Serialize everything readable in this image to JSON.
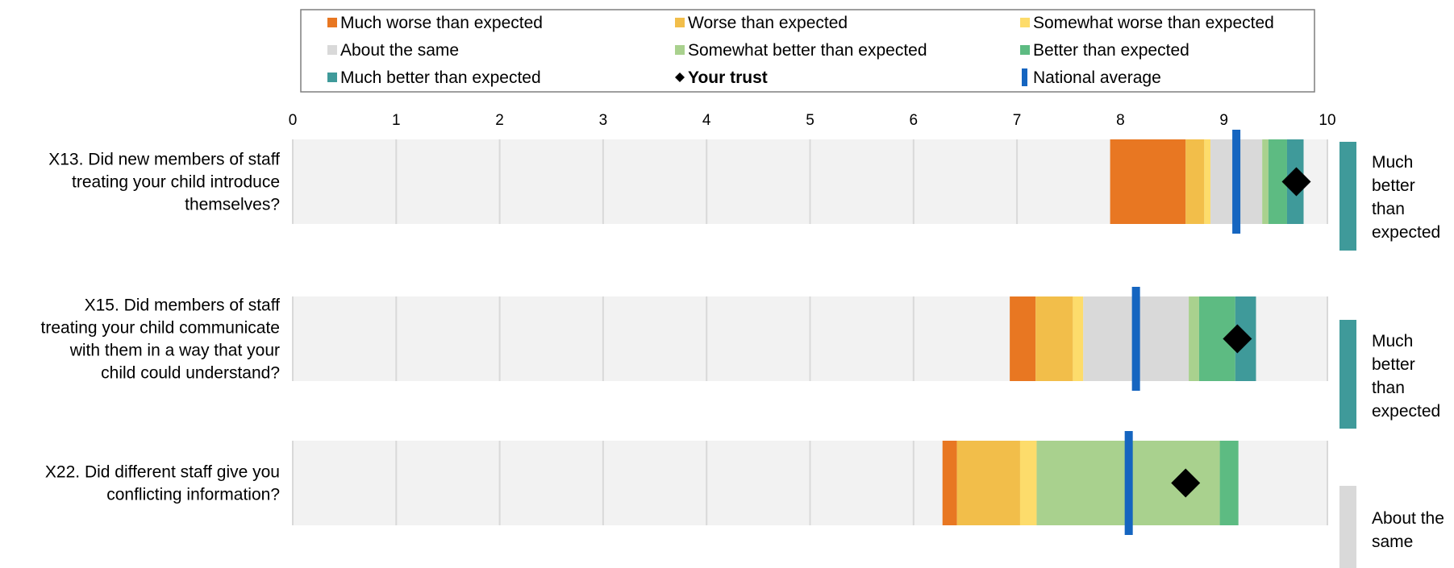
{
  "chart_data": {
    "type": "bar",
    "xlim": [
      0,
      10
    ],
    "x_ticks": [
      "0",
      "1",
      "2",
      "3",
      "4",
      "5",
      "6",
      "7",
      "8",
      "9",
      "10"
    ],
    "grid": true,
    "legend_position": "top",
    "legend": [
      {
        "label": "Much worse than expected",
        "color": "#E87722",
        "marker": "square"
      },
      {
        "label": "Worse than expected",
        "color": "#F2BE4A",
        "marker": "square"
      },
      {
        "label": "Somewhat worse than expected",
        "color": "#FDDC6B",
        "marker": "square"
      },
      {
        "label": "About the same",
        "color": "#D9D9D9",
        "marker": "square"
      },
      {
        "label": "Somewhat better than expected",
        "color": "#A9D18E",
        "marker": "square"
      },
      {
        "label": "Better than expected",
        "color": "#5DBB82",
        "marker": "square"
      },
      {
        "label": "Much better than expected",
        "color": "#3F9A9A",
        "marker": "square"
      },
      {
        "label": "Your trust",
        "color": "#000000",
        "marker": "diamond"
      },
      {
        "label": "National average",
        "color": "#1565C0",
        "marker": "bar"
      }
    ],
    "band_colors": [
      "#E87722",
      "#F2BE4A",
      "#FDDC6B",
      "#D9D9D9",
      "#A9D18E",
      "#5DBB82",
      "#3F9A9A"
    ],
    "questions": [
      {
        "label": [
          "X13. Did new members of staff",
          "treating your child introduce",
          "themselves?"
        ],
        "bands": [
          7.9,
          8.63,
          8.81,
          8.87,
          9.37,
          9.43,
          9.61,
          9.77
        ],
        "your_trust": 9.7,
        "national_average": 9.12,
        "result": [
          "Much",
          "better",
          "than",
          "expected"
        ],
        "result_color": "#3F9A9A"
      },
      {
        "label": [
          "X15. Did members of staff",
          "treating your child communicate",
          "with them in a way that your",
          "child could understand?"
        ],
        "bands": [
          6.93,
          7.18,
          7.54,
          7.64,
          8.66,
          8.76,
          9.11,
          9.31
        ],
        "your_trust": 9.13,
        "national_average": 8.15,
        "result": [
          "Much",
          "better",
          "than",
          "expected"
        ],
        "result_color": "#3F9A9A"
      },
      {
        "label": [
          "X22. Did different staff give you",
          "conflicting information?"
        ],
        "bands": [
          6.28,
          6.42,
          7.03,
          7.19,
          7.19,
          8.96,
          9.14,
          9.14
        ],
        "your_trust": 8.63,
        "national_average": 8.08,
        "result": [
          "About the",
          "same"
        ],
        "result_color": "#D9D9D9"
      }
    ]
  }
}
